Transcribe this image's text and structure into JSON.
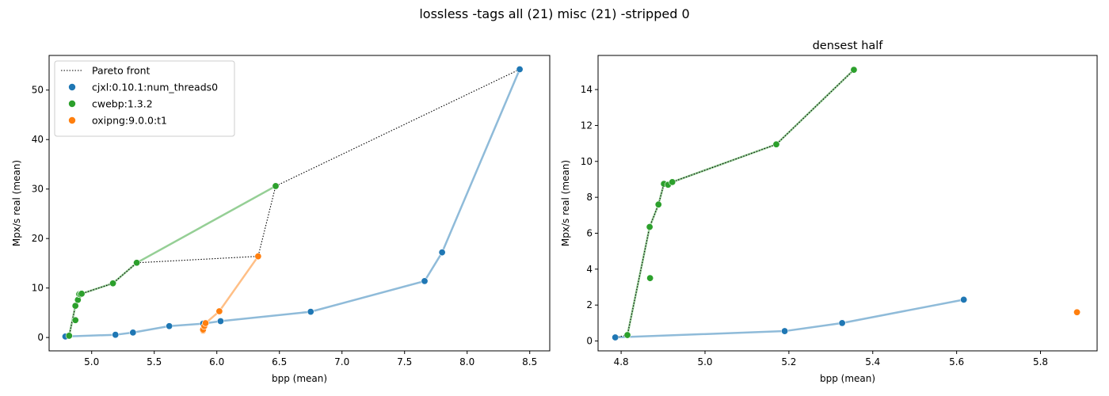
{
  "suptitle": "lossless -tags all (21) misc (21) -stripped 0",
  "colors": {
    "cjxl": "#1f77b4",
    "cwebp": "#2ca02c",
    "oxipng": "#ff7f0e",
    "pareto": "#000000"
  },
  "chart_data": [
    {
      "type": "scatter",
      "title": "",
      "xlabel": "bpp (mean)",
      "ylabel": "Mpx/s real (mean)",
      "xlim": [
        4.66,
        8.66
      ],
      "ylim": [
        -2.7,
        57.0
      ],
      "xticks": [
        5.0,
        5.5,
        6.0,
        6.5,
        7.0,
        7.5,
        8.0,
        8.5
      ],
      "yticks": [
        0,
        10,
        20,
        30,
        40,
        50
      ],
      "legend": {
        "position": "top-left",
        "entries": [
          "Pareto front",
          "cjxl:0.10.1:num_threads0",
          "cwebp:1.3.2",
          "oxipng:9.0.0:t1"
        ]
      },
      "pareto": [
        [
          4.79,
          0.25
        ],
        [
          4.82,
          0.35
        ],
        [
          4.87,
          6.4
        ],
        [
          4.89,
          7.6
        ],
        [
          4.9,
          8.7
        ],
        [
          4.92,
          8.85
        ],
        [
          5.17,
          10.95
        ],
        [
          5.36,
          15.1
        ],
        [
          6.33,
          16.4
        ],
        [
          6.47,
          30.6
        ],
        [
          8.42,
          54.2
        ]
      ],
      "series": [
        {
          "name": "cjxl:0.10.1:num_threads0",
          "color_key": "cjxl",
          "points": [
            [
              4.79,
              0.2
            ],
            [
              5.19,
              0.55
            ],
            [
              5.33,
              1.0
            ],
            [
              5.62,
              2.3
            ],
            [
              5.89,
              2.8
            ],
            [
              6.03,
              3.3
            ],
            [
              6.75,
              5.2
            ],
            [
              7.66,
              11.4
            ],
            [
              7.8,
              17.2
            ],
            [
              8.42,
              54.2
            ]
          ]
        },
        {
          "name": "cwebp:1.3.2",
          "color_key": "cwebp",
          "line": [
            [
              4.82,
              0.35
            ],
            [
              4.87,
              6.4
            ],
            [
              4.89,
              7.6
            ],
            [
              4.9,
              8.7
            ],
            [
              4.92,
              8.85
            ],
            [
              5.17,
              10.95
            ],
            [
              5.36,
              15.1
            ],
            [
              6.47,
              30.6
            ]
          ],
          "points": [
            [
              4.82,
              0.35
            ],
            [
              4.87,
              3.5
            ],
            [
              4.87,
              6.4
            ],
            [
              4.89,
              7.6
            ],
            [
              4.9,
              8.75
            ],
            [
              4.91,
              8.7
            ],
            [
              4.92,
              8.85
            ],
            [
              5.17,
              10.95
            ],
            [
              5.36,
              15.1
            ],
            [
              6.47,
              30.6
            ]
          ]
        },
        {
          "name": "oxipng:9.0.0:t1",
          "color_key": "oxipng",
          "points": [
            [
              5.89,
              1.4
            ],
            [
              5.89,
              1.6
            ],
            [
              5.9,
              2.3
            ],
            [
              5.91,
              2.9
            ],
            [
              6.02,
              5.3
            ],
            [
              6.33,
              16.4
            ]
          ]
        }
      ]
    },
    {
      "type": "scatter",
      "title": "densest half",
      "xlabel": "bpp (mean)",
      "ylabel": "Mpx/s real (mean)",
      "xlim": [
        4.745,
        5.935
      ],
      "ylim": [
        -0.55,
        15.9
      ],
      "xticks": [
        4.8,
        5.0,
        5.2,
        5.4,
        5.6,
        5.8
      ],
      "yticks": [
        0,
        2,
        4,
        6,
        8,
        10,
        12,
        14
      ],
      "pareto": [
        [
          4.786,
          0.2
        ],
        [
          4.815,
          0.33
        ],
        [
          4.868,
          6.35
        ],
        [
          4.889,
          7.6
        ],
        [
          4.902,
          8.75
        ],
        [
          4.922,
          8.85
        ],
        [
          5.17,
          10.95
        ],
        [
          5.355,
          15.1
        ]
      ],
      "series": [
        {
          "name": "cjxl:0.10.1:num_threads0",
          "color_key": "cjxl",
          "points": [
            [
              4.786,
              0.2
            ],
            [
              5.19,
              0.55
            ],
            [
              5.327,
              1.0
            ],
            [
              5.617,
              2.3
            ]
          ]
        },
        {
          "name": "cwebp:1.3.2",
          "color_key": "cwebp",
          "line": [
            [
              4.815,
              0.33
            ],
            [
              4.868,
              6.35
            ],
            [
              4.889,
              7.6
            ],
            [
              4.902,
              8.75
            ],
            [
              4.922,
              8.85
            ],
            [
              5.17,
              10.95
            ],
            [
              5.355,
              15.1
            ]
          ],
          "points": [
            [
              4.815,
              0.33
            ],
            [
              4.869,
              3.5
            ],
            [
              4.868,
              6.35
            ],
            [
              4.889,
              7.6
            ],
            [
              4.902,
              8.75
            ],
            [
              4.912,
              8.7
            ],
            [
              4.922,
              8.85
            ],
            [
              5.17,
              10.95
            ],
            [
              5.355,
              15.1
            ]
          ]
        },
        {
          "name": "oxipng:9.0.0:t1",
          "color_key": "oxipng",
          "points": [
            [
              5.887,
              1.6
            ]
          ]
        }
      ]
    }
  ]
}
